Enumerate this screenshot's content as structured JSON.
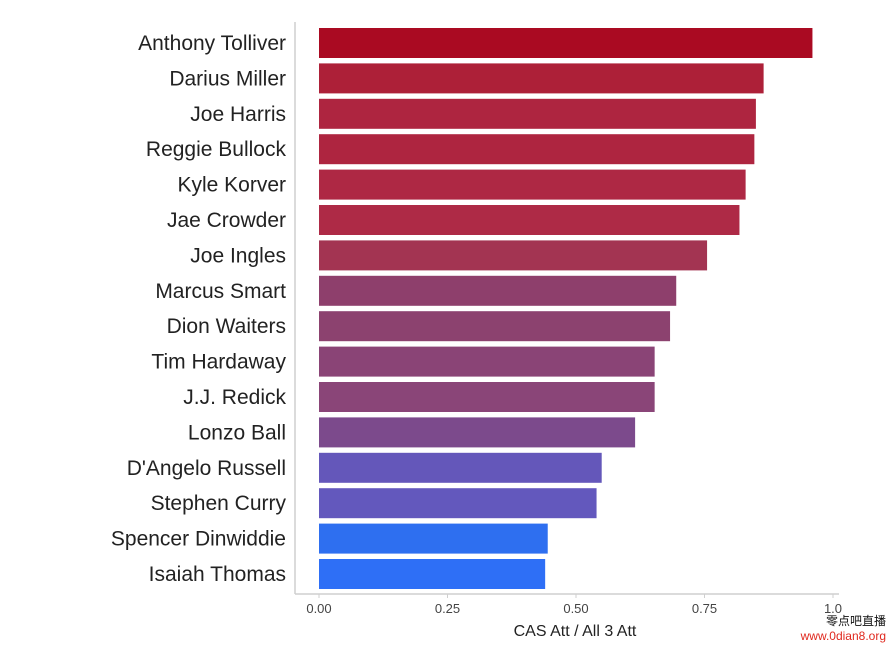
{
  "chart_data": {
    "type": "bar",
    "orientation": "horizontal",
    "categories": [
      "Anthony Tolliver",
      "Darius Miller",
      "Joe Harris",
      "Reggie Bullock",
      "Kyle Korver",
      "Jae Crowder",
      "Joe Ingles",
      "Marcus Smart",
      "Dion Waiters",
      "Tim Hardaway",
      "J.J. Redick",
      "Lonzo Ball",
      "D'Angelo Russell",
      "Stephen Curry",
      "Spencer Dinwiddie",
      "Isaiah Thomas"
    ],
    "values": [
      0.96,
      0.865,
      0.85,
      0.847,
      0.83,
      0.818,
      0.755,
      0.695,
      0.683,
      0.653,
      0.653,
      0.615,
      0.55,
      0.54,
      0.445,
      0.44
    ],
    "colors": [
      "#aa0a22",
      "#ad2038",
      "#ae2540",
      "#ae2540",
      "#ae2844",
      "#ae2a46",
      "#a33452",
      "#8e3f6c",
      "#8c426f",
      "#8a4476",
      "#8a4578",
      "#7c4a8c",
      "#6457ba",
      "#6358bd",
      "#2e6ff0",
      "#2e6ff6"
    ],
    "title": "",
    "xlabel": "CAS Att / All 3 Att",
    "ylabel": "",
    "xlim": [
      0,
      1.0
    ],
    "xticks": [
      0.0,
      0.25,
      0.5,
      0.75,
      1.0
    ],
    "xtick_labels": [
      "0.00",
      "0.25",
      "0.50",
      "0.75",
      "1.0"
    ],
    "grid": false,
    "legend": "none"
  },
  "watermark": {
    "name": "零点吧直播",
    "url": "www.0dian8.org"
  }
}
